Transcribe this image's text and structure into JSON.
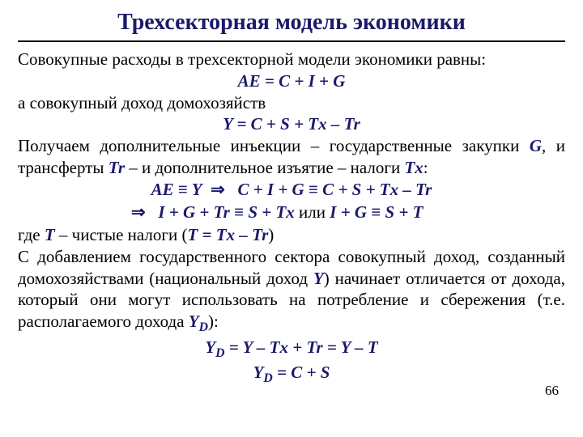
{
  "title": "Трехсекторная модель экономики",
  "line1": "Совокупные расходы в трехсекторной модели экономики  равны:",
  "eq1": "AE = C + I + G",
  "line2": "а совокупный доход домохозяйств",
  "eq2": "Y = C + S + Tx – Tr",
  "p1_a": "Получаем дополнительные инъекции – государственные закупки ",
  "p1_G": "G",
  "p1_b": ", и трансферты ",
  "p1_Tr": "Tr",
  "p1_c": " – и дополнительное изъятие – налоги ",
  "p1_Tx": "Tx",
  "p1_d": ":",
  "eq3_a": "AE ≡ Y",
  "eq3_arrow": "⇒",
  "eq3_b": "C + I + G ≡ C + S + Tx – Tr",
  "eq4_arrow": "⇒",
  "eq4_a": "I + G + Tr ≡ S + Tx",
  "eq4_or": " или ",
  "eq4_b": "I + G ≡ S + T",
  "p2_a": "где ",
  "p2_T": "T",
  "p2_b": " – чистые налоги (",
  "p2_eq": "T = Tx – Tr",
  "p2_c": ")",
  "p3_a": "С добавлением государственного сектора совокупный доход, созданный домохозяйствами (национальный доход ",
  "p3_Y": "Y",
  "p3_b": ") начинает отличается от дохода, который они могут использовать на потребление и сбережения (т.е. располагаемого дохода ",
  "p3_Yd_pre": "Y",
  "p3_Yd_sub": "D",
  "p3_c": "):",
  "eq5_Y": "Y",
  "eq5_D": "D",
  "eq5_rest": " = Y – Tx + Tr = Y – T",
  "eq6_Y": "Y",
  "eq6_D": "D",
  "eq6_rest": " = C + S",
  "pagenum": "66"
}
